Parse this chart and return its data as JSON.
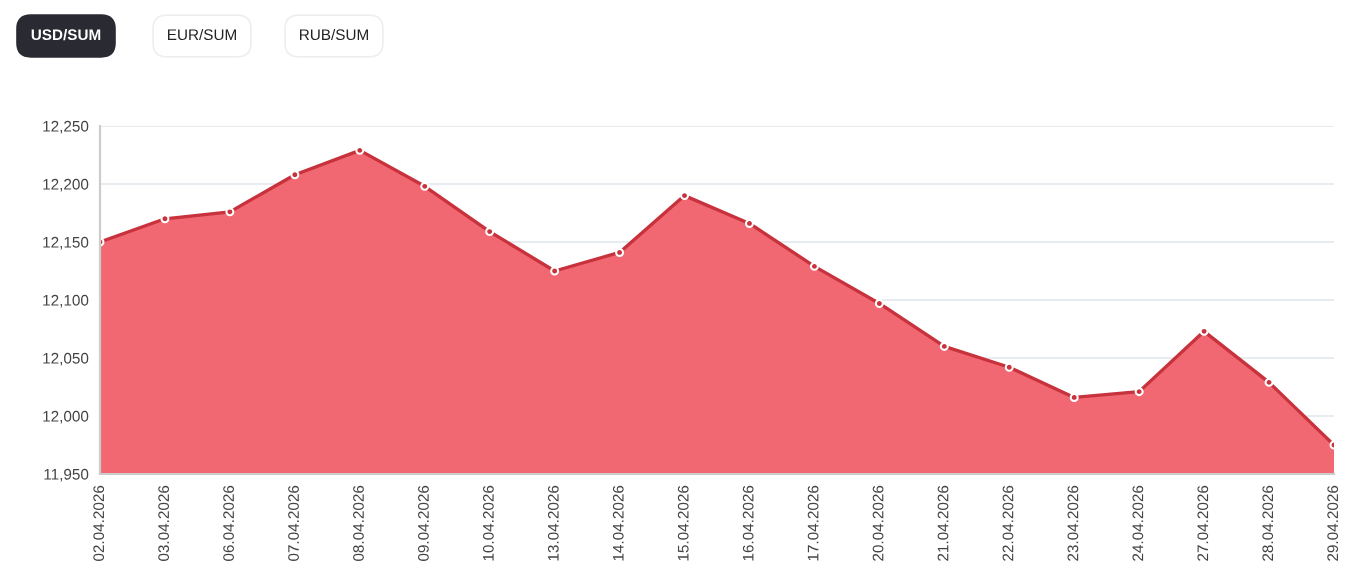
{
  "chart_data": {
    "type": "area",
    "annotations": [
      "USD/SUM",
      "EUR/SUM",
      "RUB/SUM"
    ],
    "categories": [
      "02.04.2026",
      "03.04.2026",
      "06.04.2026",
      "07.04.2026",
      "08.04.2026",
      "09.04.2026",
      "10.04.2026",
      "13.04.2026",
      "14.04.2026",
      "15.04.2026",
      "16.04.2026",
      "17.04.2026",
      "20.04.2026",
      "21.04.2026",
      "22.04.2026",
      "23.04.2026",
      "24.04.2026",
      "27.04.2026",
      "28.04.2026",
      "29.04.2026"
    ],
    "series": [
      {
        "color": "#f0606a",
        "values": [
          12150,
          12170,
          12176,
          12208,
          12229,
          12198,
          12159,
          12125,
          12141,
          12190,
          12166,
          12129,
          12097,
          12060,
          12042,
          12016,
          12021,
          12073,
          12029,
          11975
        ]
      }
    ],
    "ylim": [
      11950,
      12250
    ],
    "yticks": [
      {
        "value": 11950,
        "label": "11,950"
      },
      {
        "value": 12000,
        "label": "12,000"
      },
      {
        "value": 12050,
        "label": "12,050"
      },
      {
        "value": 12100,
        "label": "12,100"
      },
      {
        "value": 12150,
        "label": "12,150"
      },
      {
        "value": 12200,
        "label": "12,200"
      },
      {
        "value": 12250,
        "label": "12,250"
      }
    ],
    "grid": "y",
    "marker": "circle",
    "line_style": "solid"
  }
}
